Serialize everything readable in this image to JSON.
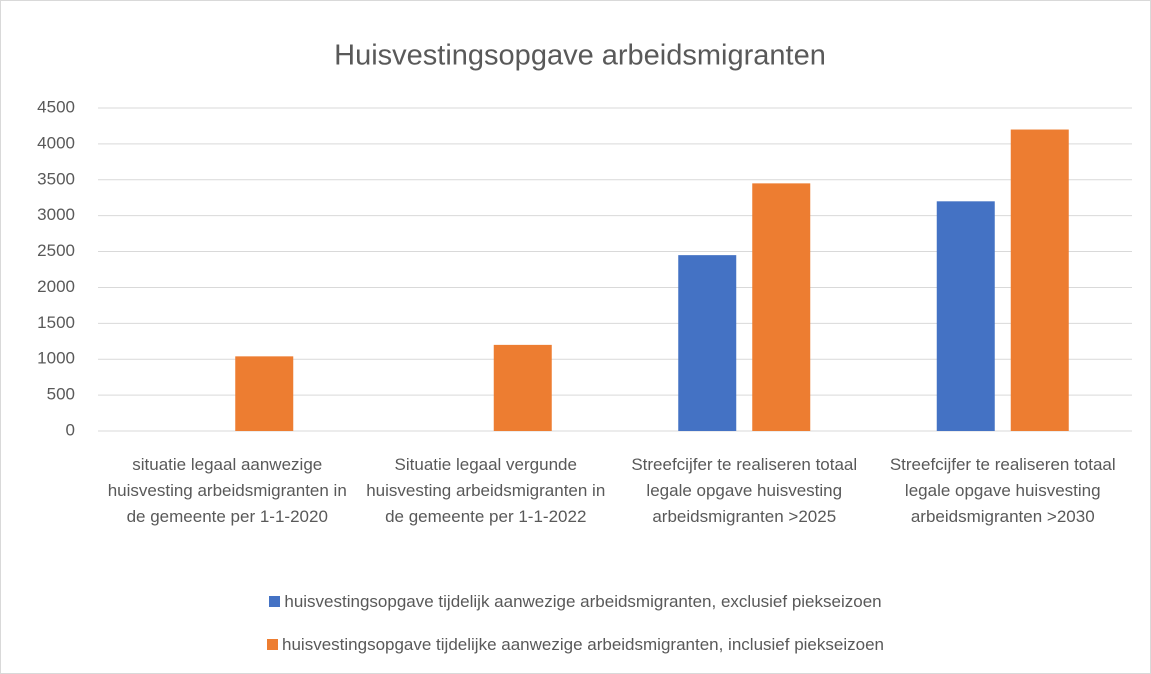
{
  "chart_data": {
    "type": "bar",
    "title": "Huisvestingsopgave arbeidsmigranten",
    "categories": [
      "situatie legaal aanwezige huisvesting arbeidsmigranten in de gemeente per 1-1-2020",
      "Situatie legaal vergunde huisvesting arbeidsmigranten in de gemeente per 1-1-2022",
      "Streefcijfer te realiseren totaal legale opgave huisvesting arbeidsmigranten >2025",
      "Streefcijfer te realiseren totaal legale opgave huisvesting arbeidsmigranten >2030"
    ],
    "series": [
      {
        "name": "huisvestingsopgave tijdelijk aanwezige arbeidsmigranten, exclusief piekseizoen",
        "color": "#4472c4",
        "values": [
          null,
          null,
          2450,
          3200
        ]
      },
      {
        "name": "huisvestingsopgave tijdelijke aanwezige arbeidsmigranten, inclusief piekseizoen",
        "color": "#ed7d31",
        "values": [
          1040,
          1200,
          3450,
          4200
        ]
      }
    ],
    "ylim": [
      0,
      4500
    ],
    "yticks": [
      0,
      500,
      1000,
      1500,
      2000,
      2500,
      3000,
      3500,
      4000,
      4500
    ],
    "grid": true,
    "legend": "bottom"
  }
}
